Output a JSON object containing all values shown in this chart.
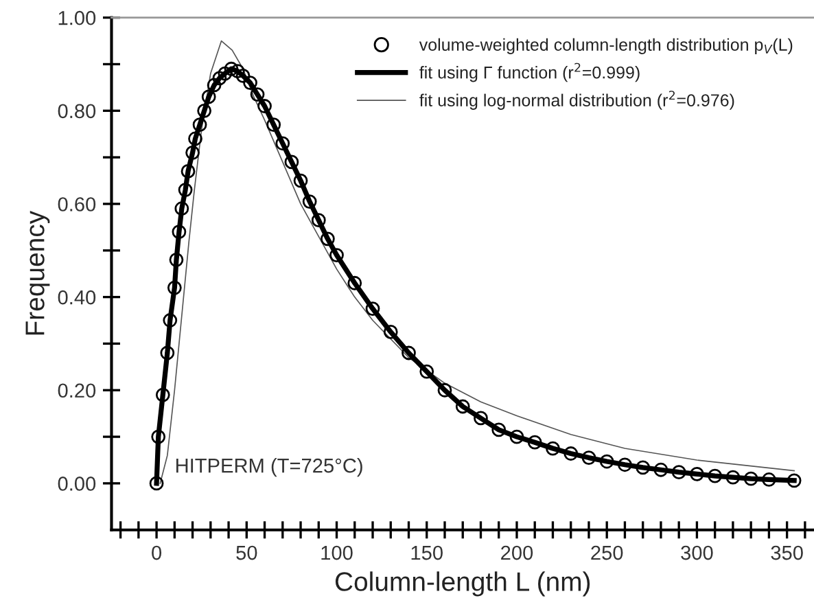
{
  "chart_data": {
    "type": "line",
    "xlabel": "Column-length L (nm)",
    "ylabel": "Frequency",
    "annotations": [
      "HITPERM (T=725°C)"
    ],
    "xlim": [
      -25,
      365
    ],
    "ylim": [
      -0.1,
      1.0
    ],
    "xticks": [
      {
        "value": -20,
        "label": null
      },
      {
        "value": -10,
        "label": null
      },
      0,
      {
        "value": 10,
        "label": null
      },
      {
        "value": 20,
        "label": null
      },
      {
        "value": 30,
        "label": null
      },
      {
        "value": 40,
        "label": null
      },
      50,
      {
        "value": 60,
        "label": null
      },
      {
        "value": 70,
        "label": null
      },
      {
        "value": 80,
        "label": null
      },
      {
        "value": 90,
        "label": null
      },
      100,
      {
        "value": 110,
        "label": null
      },
      {
        "value": 120,
        "label": null
      },
      {
        "value": 130,
        "label": null
      },
      {
        "value": 140,
        "label": null
      },
      150,
      {
        "value": 160,
        "label": null
      },
      {
        "value": 170,
        "label": null
      },
      {
        "value": 180,
        "label": null
      },
      {
        "value": 190,
        "label": null
      },
      200,
      {
        "value": 210,
        "label": null
      },
      {
        "value": 220,
        "label": null
      },
      {
        "value": 230,
        "label": null
      },
      {
        "value": 240,
        "label": null
      },
      250,
      {
        "value": 260,
        "label": null
      },
      {
        "value": 270,
        "label": null
      },
      {
        "value": 280,
        "label": null
      },
      {
        "value": 290,
        "label": null
      },
      300,
      {
        "value": 310,
        "label": null
      },
      {
        "value": 320,
        "label": null
      },
      {
        "value": 330,
        "label": null
      },
      {
        "value": 340,
        "label": null
      },
      350,
      {
        "value": 360,
        "label": null
      }
    ],
    "yticks": [
      {
        "value": 0,
        "label": "0.00"
      },
      {
        "value": 0.1,
        "label": null
      },
      {
        "value": 0.2,
        "label": "0.20"
      },
      {
        "value": 0.3,
        "label": null
      },
      {
        "value": 0.4,
        "label": "0.40"
      },
      {
        "value": 0.5,
        "label": null
      },
      {
        "value": 0.6,
        "label": "0.60"
      },
      {
        "value": 0.7,
        "label": null
      },
      {
        "value": 0.8,
        "label": "0.80"
      },
      {
        "value": 0.9,
        "label": null
      },
      {
        "value": 1.0,
        "label": "1.00"
      }
    ],
    "grid": false,
    "legend": "top right",
    "series": [
      {
        "name": "volume-weighted column-length distribution p$_{V}$(L)",
        "type": "scatter",
        "marker": "circle",
        "color": "#000000",
        "x": [
          0,
          1,
          3.5,
          6,
          7.5,
          10,
          11,
          12.5,
          14,
          16,
          17.5,
          20,
          21.5,
          24,
          26.5,
          29,
          32,
          35,
          38,
          41.5,
          45,
          48,
          52,
          56,
          60,
          65,
          70,
          75,
          80,
          85,
          90,
          95,
          100,
          110,
          120,
          130,
          140,
          150,
          160,
          170,
          180,
          190,
          200,
          210,
          220,
          230,
          240,
          250,
          260,
          270,
          280,
          290,
          300,
          310,
          320,
          330,
          340,
          354
        ],
        "values": [
          0,
          0.1,
          0.19,
          0.28,
          0.35,
          0.42,
          0.48,
          0.54,
          0.59,
          0.63,
          0.67,
          0.71,
          0.74,
          0.77,
          0.8,
          0.83,
          0.855,
          0.87,
          0.88,
          0.89,
          0.885,
          0.875,
          0.86,
          0.835,
          0.81,
          0.77,
          0.73,
          0.69,
          0.65,
          0.605,
          0.565,
          0.525,
          0.49,
          0.43,
          0.375,
          0.325,
          0.28,
          0.24,
          0.2,
          0.165,
          0.14,
          0.115,
          0.1,
          0.088,
          0.075,
          0.064,
          0.055,
          0.047,
          0.04,
          0.034,
          0.029,
          0.024,
          0.02,
          0.016,
          0.013,
          0.01,
          0.008,
          0.006
        ]
      },
      {
        "name": "fit using Γ function (r$^{2}$=0.999)",
        "color": "#000000",
        "x": [
          0,
          1,
          3.5,
          6,
          7.5,
          10,
          11,
          12.5,
          14,
          16,
          17.5,
          20,
          21.5,
          24,
          26.5,
          29,
          32,
          35,
          38,
          41.5,
          45,
          48,
          52,
          56,
          60,
          65,
          70,
          75,
          80,
          85,
          90,
          95,
          100,
          110,
          120,
          130,
          140,
          150,
          160,
          170,
          180,
          190,
          200,
          210,
          220,
          230,
          240,
          250,
          260,
          270,
          280,
          290,
          300,
          310,
          320,
          330,
          340,
          354
        ],
        "values": [
          0,
          0.1,
          0.19,
          0.28,
          0.35,
          0.42,
          0.48,
          0.54,
          0.59,
          0.63,
          0.67,
          0.71,
          0.74,
          0.77,
          0.8,
          0.83,
          0.855,
          0.87,
          0.88,
          0.89,
          0.885,
          0.875,
          0.86,
          0.835,
          0.81,
          0.77,
          0.73,
          0.69,
          0.65,
          0.605,
          0.565,
          0.525,
          0.49,
          0.43,
          0.375,
          0.325,
          0.28,
          0.24,
          0.2,
          0.165,
          0.14,
          0.115,
          0.1,
          0.088,
          0.075,
          0.064,
          0.055,
          0.047,
          0.04,
          0.034,
          0.029,
          0.024,
          0.02,
          0.016,
          0.013,
          0.01,
          0.008,
          0.006
        ]
      },
      {
        "name": "fit using log-normal distribution (r$^{2}$=0.976)",
        "color": "#555555",
        "x": [
          2,
          6,
          10,
          14,
          18,
          21,
          25,
          30,
          36,
          42,
          48,
          54,
          60,
          70,
          80,
          90,
          100,
          110,
          120,
          140,
          160,
          180,
          200,
          230,
          260,
          300,
          354
        ],
        "values": [
          0,
          0.06,
          0.2,
          0.36,
          0.52,
          0.63,
          0.76,
          0.88,
          0.95,
          0.93,
          0.89,
          0.83,
          0.78,
          0.69,
          0.6,
          0.53,
          0.46,
          0.4,
          0.35,
          0.27,
          0.215,
          0.175,
          0.145,
          0.105,
          0.075,
          0.05,
          0.027
        ]
      }
    ]
  }
}
